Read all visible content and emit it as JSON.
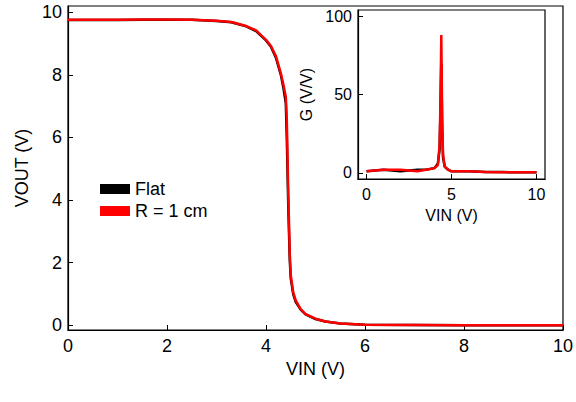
{
  "chart_data": [
    {
      "type": "line",
      "x_label": "VIN (V)",
      "y_label": "VOUT (V)",
      "x": [
        0,
        0.5,
        1,
        1.5,
        2,
        2.5,
        3,
        3.3,
        3.6,
        3.8,
        4.0,
        4.1,
        4.2,
        4.3,
        4.35,
        4.4,
        4.42,
        4.45,
        4.48,
        4.5,
        4.55,
        4.6,
        4.7,
        4.8,
        5.0,
        5.2,
        5.5,
        6,
        7,
        8,
        9,
        10
      ],
      "series": [
        {
          "name": "Flat",
          "color": "#000000",
          "values": [
            9.75,
            9.75,
            9.75,
            9.76,
            9.76,
            9.76,
            9.72,
            9.68,
            9.55,
            9.4,
            9.1,
            8.9,
            8.55,
            8.0,
            7.6,
            7.1,
            6.0,
            3.8,
            2.1,
            1.5,
            1.0,
            0.75,
            0.5,
            0.35,
            0.2,
            0.12,
            0.06,
            0.02,
            0.01,
            0,
            0,
            0
          ]
        },
        {
          "name": "R = 1 cm",
          "color": "#ff0000",
          "values": [
            9.76,
            9.76,
            9.76,
            9.77,
            9.77,
            9.76,
            9.73,
            9.69,
            9.56,
            9.42,
            9.12,
            8.92,
            8.6,
            8.05,
            7.7,
            7.3,
            6.6,
            4.2,
            2.3,
            1.6,
            1.05,
            0.8,
            0.52,
            0.36,
            0.21,
            0.12,
            0.06,
            0.02,
            0.01,
            0,
            0,
            0
          ]
        }
      ],
      "xlim": [
        0,
        10
      ],
      "ylim": [
        -0.15,
        10.2
      ],
      "xticks": [
        0,
        2,
        4,
        6,
        8,
        10
      ],
      "yticks": [
        0,
        2,
        4,
        6,
        8,
        10
      ],
      "grid": false,
      "legend": "upper left"
    },
    {
      "type": "line",
      "x_label": "VIN (V)",
      "y_label": "G (V/V)",
      "x": [
        0,
        1,
        2,
        3,
        3.5,
        4,
        4.2,
        4.3,
        4.35,
        4.4,
        4.45,
        4.5,
        4.6,
        4.8,
        5,
        6,
        7,
        8,
        9,
        10
      ],
      "series": [
        {
          "color": "#000000",
          "values": [
            1,
            2,
            1,
            2,
            2,
            3,
            6,
            15,
            40,
            70,
            30,
            10,
            4,
            2,
            1,
            1,
            0.5,
            0.5,
            0.3,
            0.3
          ]
        },
        {
          "color": "#ff0000",
          "values": [
            1,
            2,
            2,
            1,
            2,
            3,
            5,
            18,
            45,
            88,
            35,
            12,
            4,
            2,
            1,
            1,
            0.5,
            0.3,
            0.3,
            0.3
          ]
        }
      ],
      "xlim": [
        -0.5,
        10.5
      ],
      "ylim": [
        -4,
        104
      ],
      "xticks": [
        0,
        5,
        10
      ],
      "yticks": [
        0,
        50,
        100
      ],
      "grid": false
    }
  ]
}
